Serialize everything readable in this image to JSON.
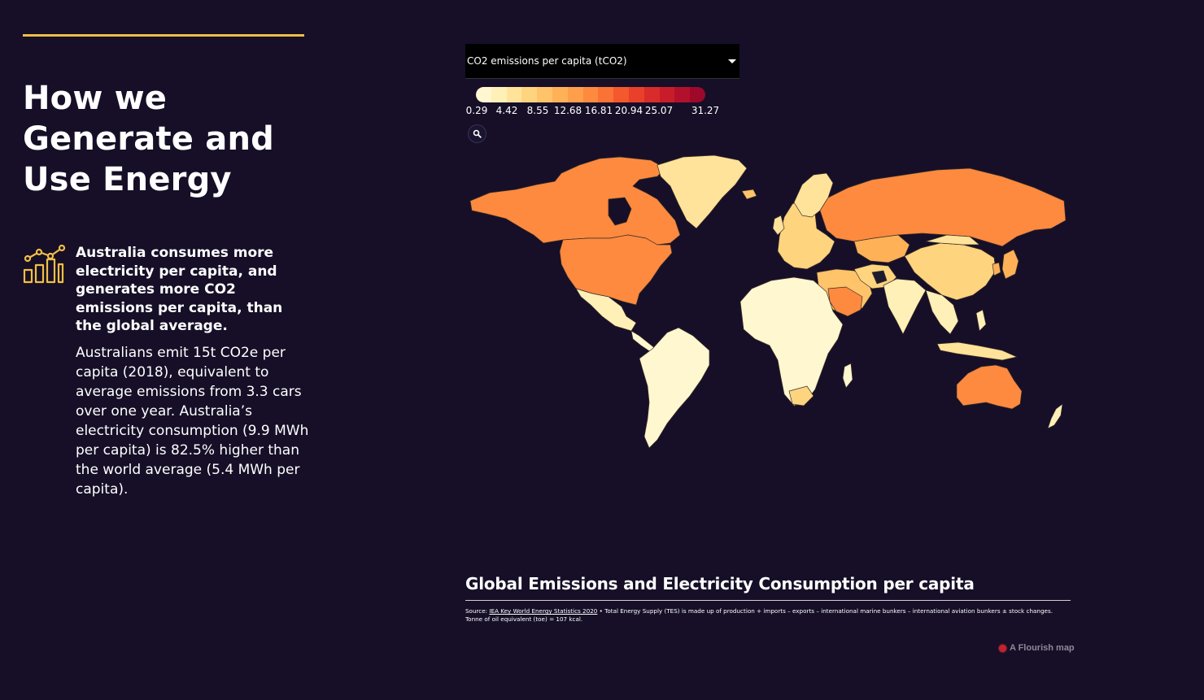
{
  "heading": {
    "line1": "How we",
    "line2": "Generate and",
    "line3": "Use Energy"
  },
  "stat": {
    "icon": "line-bar-chart-icon",
    "lead": "Australia consumes more electricity per capita, and generates more CO2 emissions per capita, than the global average.",
    "body": "Australians emit 15t CO2e per capita (2018), equivalent to average emissions from 3.3 cars over one year. Australia’s electricity consumption (9.9 MWh per capita) is 82.5% higher than the world average (5.4 MWh per capita)."
  },
  "map": {
    "metric_selected": "CO2 emissions per capita (tCO2)",
    "legend_ticks": [
      "0.29",
      "4.42",
      "8.55",
      "12.68",
      "16.81",
      "20.94",
      "25.07",
      "31.27"
    ],
    "legend_colors": [
      "#fff7d0",
      "#fff0b8",
      "#ffe39a",
      "#ffd47f",
      "#ffc36a",
      "#ffb157",
      "#ff9e4b",
      "#fd8a3f",
      "#fa7235",
      "#f4582d",
      "#e8402a",
      "#d92b29",
      "#c81c2a",
      "#b3112b",
      "#9d082b"
    ],
    "title": "Global Emissions and Electricity Consumption per capita",
    "source_label": "Source:",
    "source_link": "IEA Key World Energy Statistics 2020",
    "source_note": "• Total Energy Supply (TES) is made up of production + imports – exports – international marine bunkers – international aviation bunkers ± stock changes. Tonne of oil equivalent (toe) = 107 kcal.",
    "credit": "A Flourish map",
    "colors": {
      "background": "#160f27",
      "accent_rule": "#f0bf45",
      "high_emitter": "#fd8a3f",
      "mid_emitter": "#ffcf78",
      "low_emitter": "#fff5c8",
      "very_high": "#1e1a2e"
    }
  }
}
